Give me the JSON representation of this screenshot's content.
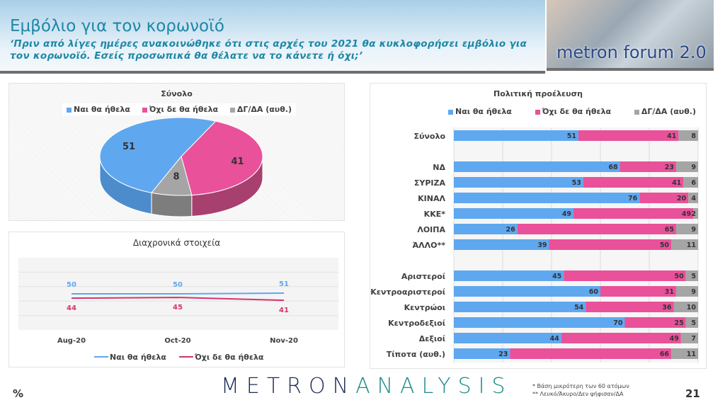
{
  "header": {
    "title": "Εμβόλιο για τον κορωνοϊό",
    "subtitle": "‘Πριν από λίγες ημέρες ανακοινώθηκε ότι στις αρχές του 2021 θα κυκλοφορήσει εμβόλιο για τον κορωνοϊό. Εσείς προσωπικά θα θέλατε να το κάνετε ή όχι;’"
  },
  "brand_image": {
    "text": "metron forum 2.0"
  },
  "colors": {
    "yes": "#5fa8f0",
    "no": "#e9519a",
    "dk": "#a5a5a5",
    "no_line": "#d6336f"
  },
  "chart_data": [
    {
      "type": "pie",
      "title": "Σύνολο",
      "legend_placement": "top",
      "series": [
        {
          "name": "Ναι θα ήθελα",
          "value": 51
        },
        {
          "name": "Όχι δε θα ήθελα",
          "value": 41
        },
        {
          "name": "ΔΓ/ΔΑ (αυθ.)",
          "value": 8
        }
      ]
    },
    {
      "type": "line",
      "title": "Διαχρονικά στοιχεία",
      "categories": [
        "Aug-20",
        "Oct-20",
        "Nov-20"
      ],
      "ylim": [
        0,
        100
      ],
      "grid": true,
      "legend_placement": "bottom",
      "series": [
        {
          "name": "Ναι θα ήθελα",
          "values": [
            50,
            50,
            51
          ]
        },
        {
          "name": "Όχι δε θα ήθελα",
          "values": [
            44,
            45,
            41
          ]
        }
      ]
    },
    {
      "type": "bar",
      "stacked": true,
      "orientation": "horizontal",
      "title": "Πολιτική προέλευση",
      "xlim": [
        0,
        100
      ],
      "legend_placement": "top",
      "series_names": [
        "Ναι θα ήθελα",
        "Όχι δε θα ήθελα",
        "ΔΓ/ΔΑ (αυθ.)"
      ],
      "rows": [
        {
          "label": "Σύνολο",
          "values": [
            51,
            41,
            8
          ]
        },
        {
          "label": "",
          "values": null
        },
        {
          "label": "ΝΔ",
          "values": [
            68,
            23,
            9
          ]
        },
        {
          "label": "ΣΥΡΙΖΑ",
          "values": [
            53,
            41,
            6
          ]
        },
        {
          "label": "ΚΙΝΑΛ",
          "values": [
            76,
            20,
            4
          ]
        },
        {
          "label": "ΚΚΕ*",
          "values": [
            49,
            49,
            2
          ]
        },
        {
          "label": "ΛΟΙΠΑ",
          "values": [
            26,
            65,
            9
          ]
        },
        {
          "label": "ΆΛΛΟ**",
          "values": [
            39,
            50,
            11
          ]
        },
        {
          "label": "",
          "values": null
        },
        {
          "label": "Αριστεροί",
          "values": [
            45,
            50,
            5
          ]
        },
        {
          "label": "Κεντροαριστεροί",
          "values": [
            60,
            31,
            9
          ]
        },
        {
          "label": "Κεντρώοι",
          "values": [
            54,
            36,
            10
          ]
        },
        {
          "label": "Κεντροδεξιοί",
          "values": [
            70,
            25,
            5
          ]
        },
        {
          "label": "Δεξιοί",
          "values": [
            44,
            49,
            7
          ]
        },
        {
          "label": "Τίποτα (αυθ.)",
          "values": [
            23,
            66,
            11
          ]
        }
      ]
    }
  ],
  "footer": {
    "logo_a": "METRON",
    "logo_b": "ANALYSIS",
    "unit": "%",
    "note1": "*  Βάση μικρότερη των 60 ατόμων",
    "note2": "** Λευκό/Άκυρο/Δεν ψήφισαν/ΔΑ",
    "page": "21"
  }
}
